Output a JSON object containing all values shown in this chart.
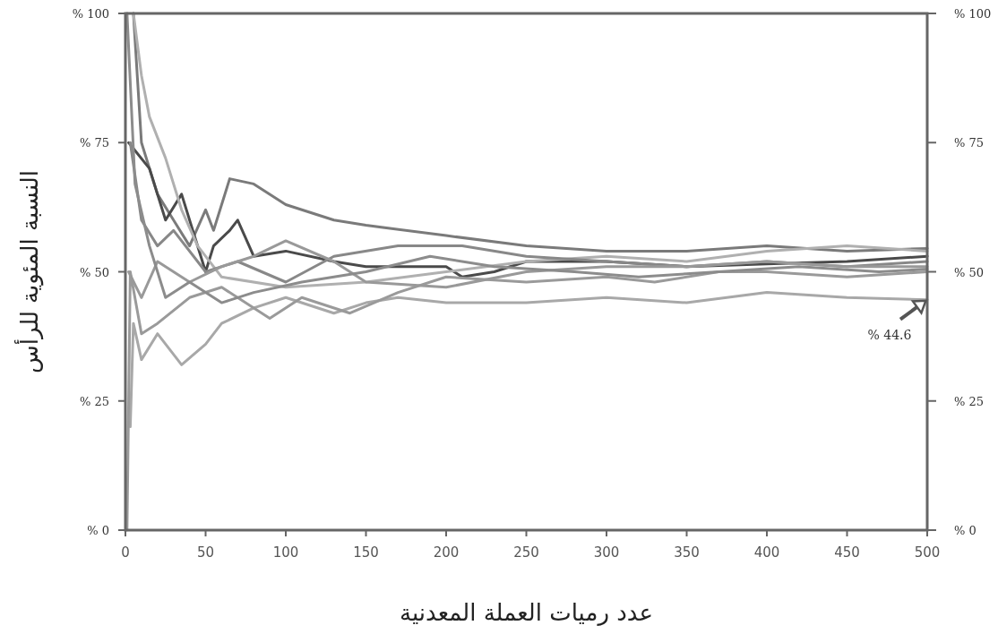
{
  "chart_data": {
    "type": "line",
    "xlabel": "عدد رميات العملة المعدنية",
    "ylabel": "النسبة المئوية للرأس",
    "xlim": [
      0,
      500
    ],
    "xticks": [
      0,
      50,
      100,
      150,
      200,
      250,
      300,
      350,
      400,
      450,
      500
    ],
    "ylim": [
      0,
      100
    ],
    "yticks": [
      {
        "value": 0,
        "label": "% 0"
      },
      {
        "value": 25,
        "label": "% 25"
      },
      {
        "value": 50,
        "label": "% 50"
      },
      {
        "value": 75,
        "label": "% 75"
      },
      {
        "value": 100,
        "label": "% 100"
      }
    ],
    "y2lim": [
      0,
      100
    ],
    "y2ticks": [
      {
        "value": 0,
        "label": "% 0"
      },
      {
        "value": 25,
        "label": "% 25"
      },
      {
        "value": 50,
        "label": "% 50"
      },
      {
        "value": 75,
        "label": "% 75"
      },
      {
        "value": 100,
        "label": "% 100"
      }
    ],
    "grid": false,
    "marker": "none",
    "line_style": "solid",
    "annotations": [
      {
        "text": "% 44.6",
        "x": 500,
        "y": 44.6
      }
    ],
    "series": [
      {
        "color": "#7a7a7a",
        "x": [
          5,
          10,
          20,
          30,
          40,
          50,
          55,
          65,
          80,
          100,
          130,
          150,
          200,
          250,
          300,
          350,
          400,
          450,
          500
        ],
        "values": [
          100,
          75,
          65,
          60,
          55,
          62,
          58,
          68,
          67,
          63,
          60,
          59,
          57,
          55,
          54,
          54,
          55,
          54,
          54.5
        ]
      },
      {
        "color": "#4a4a4a",
        "x": [
          2,
          15,
          25,
          35,
          50,
          55,
          65,
          70,
          80,
          100,
          130,
          150,
          200,
          210,
          230,
          250,
          300,
          350,
          400,
          450,
          500
        ],
        "values": [
          75,
          70,
          60,
          65,
          50,
          55,
          58,
          60,
          53,
          54,
          52,
          51,
          51,
          49,
          50,
          52,
          52,
          51,
          51.5,
          52,
          53
        ]
      },
      {
        "color": "#a8a8a8",
        "x": [
          3,
          5,
          10,
          20,
          35,
          50,
          60,
          80,
          100,
          130,
          150,
          170,
          200,
          250,
          300,
          350,
          400,
          450,
          500
        ],
        "values": [
          20,
          40,
          33,
          38,
          32,
          36,
          40,
          43,
          45,
          42,
          44,
          45,
          44,
          44,
          45,
          44,
          46,
          45,
          44.6
        ]
      },
      {
        "color": "#9a9a9a",
        "x": [
          1,
          3,
          10,
          20,
          40,
          60,
          90,
          110,
          140,
          170,
          200,
          250,
          300,
          330,
          370,
          400,
          450,
          500
        ],
        "values": [
          0,
          50,
          38,
          40,
          45,
          47,
          41,
          45,
          42,
          46,
          49,
          48,
          49,
          48,
          50,
          50,
          49,
          50
        ]
      },
      {
        "color": "#b0b0b0",
        "x": [
          5,
          10,
          15,
          25,
          35,
          45,
          60,
          100,
          150,
          200,
          250,
          300,
          350,
          400,
          450,
          500
        ],
        "values": [
          100,
          88,
          80,
          72,
          62,
          55,
          49,
          47,
          48,
          50,
          52,
          53,
          52,
          54,
          55,
          54
        ]
      },
      {
        "color": "#888888",
        "x": [
          3,
          10,
          20,
          30,
          50,
          70,
          100,
          130,
          170,
          210,
          250,
          300,
          350,
          400,
          450,
          500
        ],
        "values": [
          75,
          60,
          55,
          58,
          50,
          52,
          48,
          53,
          55,
          55,
          53,
          52,
          51,
          52,
          51,
          52
        ]
      },
      {
        "color": "#999999",
        "x": [
          2,
          10,
          20,
          40,
          60,
          80,
          100,
          130,
          150,
          200,
          250,
          300,
          350,
          400,
          450,
          500
        ],
        "values": [
          50,
          45,
          52,
          48,
          51,
          53,
          56,
          52,
          48,
          47,
          50,
          51,
          51,
          52,
          51,
          51
        ]
      },
      {
        "color": "#8c8c8c",
        "x": [
          1,
          6,
          15,
          25,
          40,
          60,
          80,
          110,
          150,
          190,
          230,
          280,
          320,
          370,
          420,
          470,
          500
        ],
        "values": [
          100,
          67,
          55,
          45,
          48,
          44,
          46,
          48,
          50,
          53,
          51,
          50,
          49,
          50,
          51,
          50,
          50.5
        ]
      }
    ]
  }
}
